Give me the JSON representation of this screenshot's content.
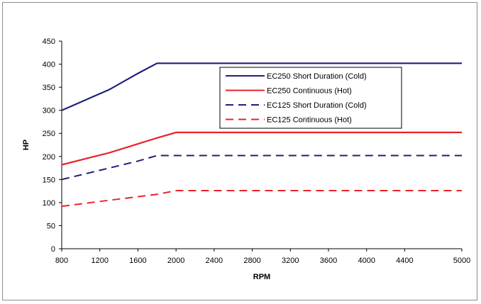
{
  "chart_data": {
    "type": "line",
    "title": "",
    "xlabel": "RPM",
    "ylabel": "HP",
    "xlim": [
      800,
      5000
    ],
    "ylim": [
      0,
      450
    ],
    "xticks": [
      800,
      1200,
      1600,
      2000,
      2400,
      2800,
      3200,
      3600,
      4000,
      4400,
      5000
    ],
    "yticks": [
      0,
      50,
      100,
      150,
      200,
      250,
      300,
      350,
      400,
      450
    ],
    "grid": false,
    "legend": "top-right",
    "series": [
      {
        "name": "EC250 Short Duration (Cold)",
        "color": "#1f1f7a",
        "style": "solid",
        "points": [
          [
            800,
            300
          ],
          [
            1300,
            345
          ],
          [
            1600,
            380
          ],
          [
            1800,
            402
          ],
          [
            5000,
            402
          ]
        ]
      },
      {
        "name": "EC250 Continuous (Hot)",
        "color": "#e8242a",
        "style": "solid",
        "points": [
          [
            800,
            182
          ],
          [
            1300,
            208
          ],
          [
            1800,
            240
          ],
          [
            2000,
            252
          ],
          [
            5000,
            252
          ]
        ]
      },
      {
        "name": "EC125 Short Duration (Cold)",
        "color": "#1f1f7a",
        "style": "dashed",
        "points": [
          [
            800,
            150
          ],
          [
            1300,
            175
          ],
          [
            1600,
            190
          ],
          [
            1800,
            202
          ],
          [
            5000,
            202
          ]
        ]
      },
      {
        "name": "EC125 Continuous (Hot)",
        "color": "#e8242a",
        "style": "dashed",
        "points": [
          [
            800,
            92
          ],
          [
            1300,
            105
          ],
          [
            1800,
            118
          ],
          [
            2000,
            126
          ],
          [
            5000,
            126
          ]
        ]
      }
    ]
  }
}
